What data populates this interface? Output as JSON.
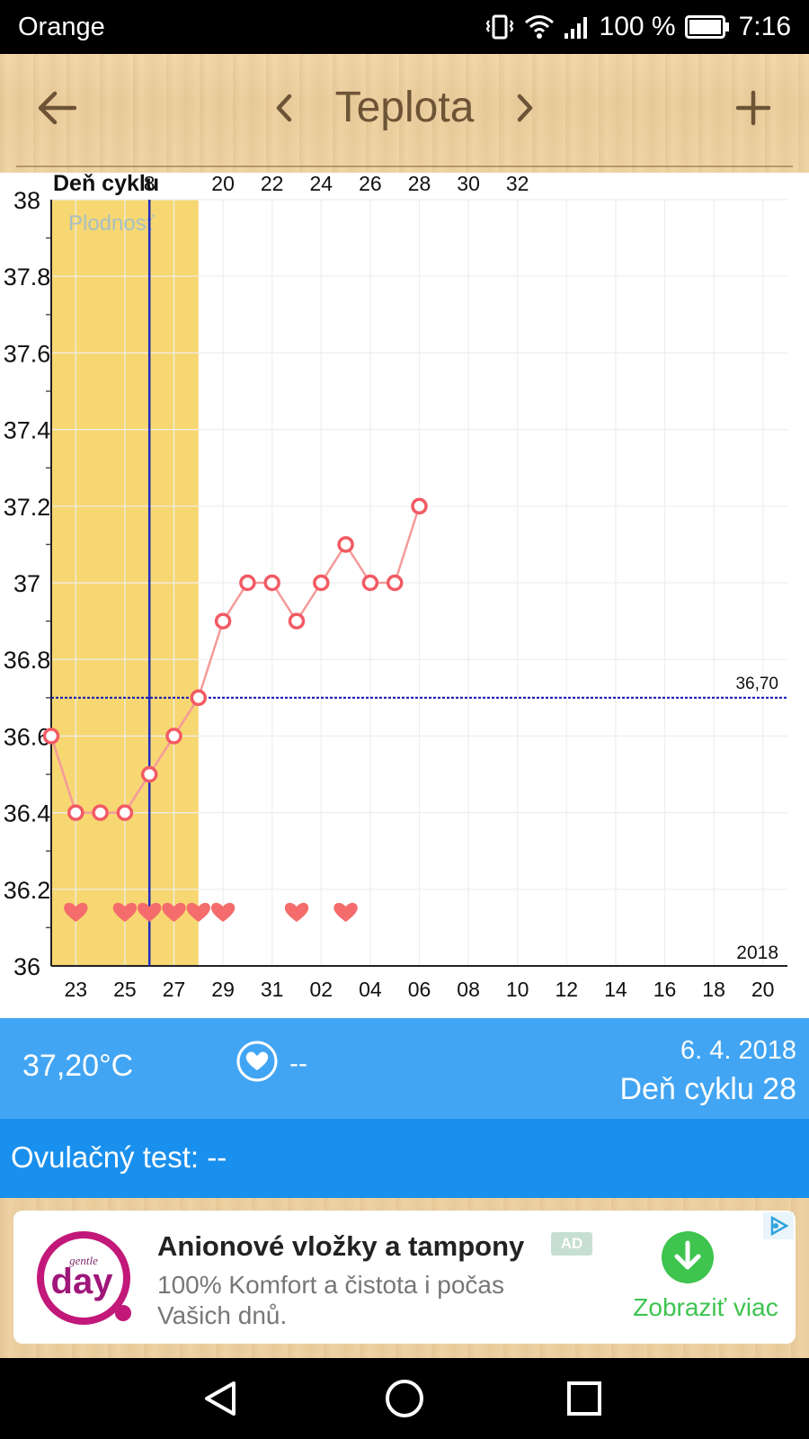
{
  "status_bar": {
    "carrier": "Orange",
    "battery": "100 %",
    "time": "7:16"
  },
  "toolbar": {
    "title": "Teplota"
  },
  "chart_data": {
    "type": "line",
    "top_axis_label": "Deň cyklu",
    "top_ticks": [
      {
        "label": "8",
        "x": 26
      },
      {
        "label": "20",
        "x": 29
      },
      {
        "label": "22",
        "x": 31
      },
      {
        "label": "24",
        "x": 33
      },
      {
        "label": "26",
        "x": 35
      },
      {
        "label": "28",
        "x": 37
      },
      {
        "label": "30",
        "x": 39
      },
      {
        "label": "32",
        "x": 41
      }
    ],
    "bottom_ticks": [
      {
        "label": "23",
        "x": 23
      },
      {
        "label": "25",
        "x": 25
      },
      {
        "label": "27",
        "x": 27
      },
      {
        "label": "29",
        "x": 29
      },
      {
        "label": "31",
        "x": 31
      },
      {
        "label": "02",
        "x": 33
      },
      {
        "label": "04",
        "x": 35
      },
      {
        "label": "06",
        "x": 37
      },
      {
        "label": "08",
        "x": 39
      },
      {
        "label": "10",
        "x": 41
      },
      {
        "label": "12",
        "x": 43
      },
      {
        "label": "14",
        "x": 45
      },
      {
        "label": "16",
        "x": 47
      },
      {
        "label": "18",
        "x": 49
      },
      {
        "label": "20",
        "x": 51
      }
    ],
    "x_range": [
      22,
      52
    ],
    "ylim": [
      36,
      38
    ],
    "y_ticks": [
      "38",
      "37.8",
      "37.6",
      "37.4",
      "37.2",
      "37",
      "36.8",
      "36.6",
      "36.4",
      "36.2",
      "36"
    ],
    "temperatures": [
      {
        "x": 22,
        "y": 36.6
      },
      {
        "x": 23,
        "y": 36.4
      },
      {
        "x": 24,
        "y": 36.4
      },
      {
        "x": 25,
        "y": 36.4
      },
      {
        "x": 26,
        "y": 36.5
      },
      {
        "x": 27,
        "y": 36.6
      },
      {
        "x": 28,
        "y": 36.7
      },
      {
        "x": 29,
        "y": 36.9
      },
      {
        "x": 30,
        "y": 37.0
      },
      {
        "x": 31,
        "y": 37.0
      },
      {
        "x": 32,
        "y": 36.9
      },
      {
        "x": 33,
        "y": 37.0
      },
      {
        "x": 34,
        "y": 37.1
      },
      {
        "x": 35,
        "y": 37.0
      },
      {
        "x": 36,
        "y": 37.0
      },
      {
        "x": 37,
        "y": 37.2
      }
    ],
    "hearts_x": [
      23,
      25,
      26,
      27,
      28,
      29,
      32,
      34
    ],
    "fertile_window": {
      "x_start": 22,
      "x_end": 28,
      "label": "Plodnosť"
    },
    "ovulation_marker_x": 26,
    "coverline": {
      "value": 36.7,
      "label": "36,70"
    },
    "year_label": "2018",
    "colors": {
      "fertile": "#f7d772",
      "line": "#f59a9a",
      "marker": "#f25a63",
      "heart": "#f46c6c",
      "ovulation": "#1f2cbf",
      "coverline": "#1a1ab5",
      "grid": "#eeeeee"
    }
  },
  "info": {
    "temperature": "37,20°C",
    "intercourse": "--",
    "date": "6. 4. 2018",
    "cycle_day": "Deň cyklu 28"
  },
  "ovulation_test": {
    "label": "Ovulačný test:",
    "value": "--"
  },
  "ad": {
    "logo_text": "day",
    "logo_subtext": "gentle",
    "headline": "Anionové vložky a tampony",
    "badge": "AD",
    "description": "100% Komfort a čistota i počas Vašich dnů.",
    "cta": "Zobraziť viac"
  }
}
